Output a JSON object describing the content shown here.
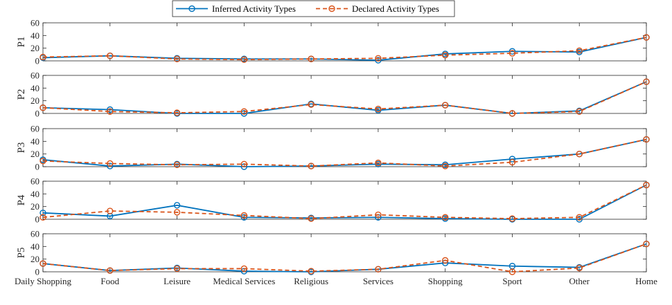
{
  "chart_data": {
    "type": "line",
    "categories": [
      "Daily Shopping",
      "Food",
      "Leisure",
      "Medical Services",
      "Religious",
      "Services",
      "Shopping",
      "Sport",
      "Other",
      "Home"
    ],
    "ylim": [
      0,
      60
    ],
    "yticks": [
      0,
      20,
      40,
      60
    ],
    "legend": {
      "placement": "top-center",
      "entries": [
        "Inferred Activity Types",
        "Declared Activity Types"
      ]
    },
    "series_colors": [
      "#0072BD",
      "#D95319"
    ],
    "series_styles": [
      "solid",
      "dashed"
    ],
    "panels": [
      {
        "label": "P1",
        "series": [
          {
            "name": "Inferred Activity Types",
            "values": [
              5,
              8,
              4,
              3,
              3,
              1,
              11,
              15,
              14,
              37
            ]
          },
          {
            "name": "Declared Activity Types",
            "values": [
              6,
              8,
              3,
              2,
              3,
              4,
              9,
              12,
              16,
              37
            ]
          }
        ]
      },
      {
        "label": "P2",
        "series": [
          {
            "name": "Inferred Activity Types",
            "values": [
              9,
              6,
              0,
              0,
              15,
              5,
              13,
              0,
              4,
              50
            ]
          },
          {
            "name": "Declared Activity Types",
            "values": [
              9,
              3,
              1,
              3,
              14,
              7,
              13,
              0,
              3,
              50
            ]
          }
        ]
      },
      {
        "label": "P3",
        "series": [
          {
            "name": "Inferred Activity Types",
            "values": [
              11,
              1,
              4,
              0,
              1,
              4,
              3,
              12,
              20,
              43
            ]
          },
          {
            "name": "Declared Activity Types",
            "values": [
              9,
              5,
              3,
              4,
              1,
              6,
              1,
              7,
              20,
              43
            ]
          }
        ]
      },
      {
        "label": "P4",
        "series": [
          {
            "name": "Inferred Activity Types",
            "values": [
              10,
              5,
              22,
              3,
              2,
              3,
              1,
              0,
              0,
              54
            ]
          },
          {
            "name": "Declared Activity Types",
            "values": [
              3,
              13,
              11,
              6,
              1,
              7,
              3,
              1,
              3,
              54
            ]
          }
        ]
      },
      {
        "label": "P5",
        "series": [
          {
            "name": "Inferred Activity Types",
            "values": [
              13,
              2,
              6,
              1,
              0,
              4,
              14,
              9,
              7,
              44
            ]
          },
          {
            "name": "Declared Activity Types",
            "values": [
              13,
              2,
              5,
              5,
              1,
              4,
              18,
              0,
              6,
              44
            ]
          }
        ]
      }
    ]
  }
}
